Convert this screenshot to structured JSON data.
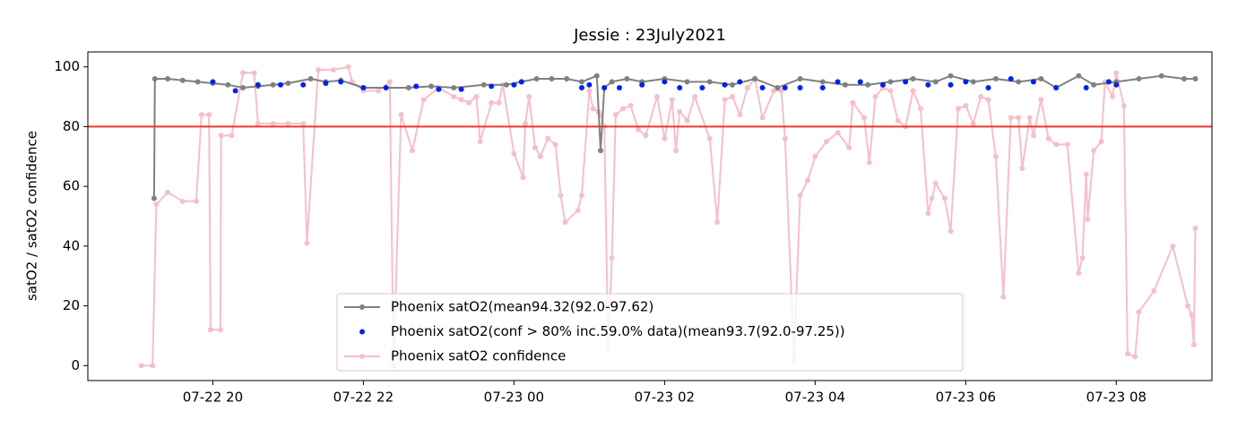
{
  "chart_data": {
    "type": "line",
    "title": "Jessie : 23July2021",
    "ylabel": "satO2 / satO2 confidence",
    "xlim": [
      18.34,
      33.27
    ],
    "xticks": [
      {
        "value": 20,
        "label": "07-22 20"
      },
      {
        "value": 22,
        "label": "07-22 22"
      },
      {
        "value": 24,
        "label": "07-23 00"
      },
      {
        "value": 26,
        "label": "07-23 02"
      },
      {
        "value": 28,
        "label": "07-23 04"
      },
      {
        "value": 30,
        "label": "07-23 06"
      },
      {
        "value": 32,
        "label": "07-23 08"
      }
    ],
    "ylim": [
      -5,
      105
    ],
    "yticks": [
      0,
      20,
      40,
      60,
      80,
      100
    ],
    "threshold": 80,
    "threshold_color": "#e8372c",
    "legend": "lower center",
    "series": [
      {
        "name": "Phoenix satO2(mean94.32(92.0-97.62)",
        "color": "#808080",
        "style": "line",
        "x": [
          19.22,
          19.23,
          19.4,
          19.6,
          19.8,
          20.0,
          20.2,
          20.4,
          20.6,
          20.8,
          21.0,
          21.3,
          21.5,
          21.7,
          22.0,
          22.3,
          22.6,
          22.9,
          23.2,
          23.6,
          23.9,
          24.1,
          24.3,
          24.5,
          24.7,
          24.9,
          25.1,
          25.15,
          25.2,
          25.3,
          25.5,
          25.7,
          26.0,
          26.3,
          26.6,
          26.9,
          27.2,
          27.5,
          27.8,
          28.1,
          28.4,
          28.7,
          29.0,
          29.3,
          29.6,
          29.8,
          30.1,
          30.4,
          30.7,
          31.0,
          31.2,
          31.5,
          31.7,
          32.0,
          32.3,
          32.6,
          32.9,
          33.05
        ],
        "values": [
          56,
          96,
          96,
          95.5,
          95,
          94.5,
          94,
          93,
          93.5,
          94,
          94.5,
          96,
          95,
          95.5,
          93,
          93,
          93,
          93.5,
          93,
          94,
          94,
          95,
          96,
          96,
          96,
          95,
          97,
          72,
          93,
          95,
          96,
          95,
          96,
          95,
          95,
          94,
          96,
          93,
          96,
          95,
          94,
          94,
          95,
          96,
          95,
          97,
          95,
          96,
          95,
          96,
          93,
          97,
          94,
          95,
          96,
          97,
          96,
          96
        ]
      },
      {
        "name": "Phoenix satO2(conf > 80% inc.59.0% data)(mean93.7(92.0-97.25))",
        "color": "#0022ee",
        "style": "scatter",
        "x": [
          20.0,
          20.3,
          20.6,
          20.9,
          21.2,
          21.5,
          21.7,
          22.0,
          22.3,
          22.7,
          23.0,
          23.3,
          23.7,
          24.0,
          24.1,
          24.9,
          25.0,
          25.2,
          25.4,
          25.7,
          26.0,
          26.2,
          26.5,
          26.8,
          27.0,
          27.3,
          27.6,
          27.8,
          28.1,
          28.3,
          28.6,
          28.9,
          29.2,
          29.5,
          29.8,
          30.0,
          30.3,
          30.6,
          30.9,
          31.2,
          31.6,
          31.9,
          32.0
        ],
        "values": [
          95,
          92,
          94,
          94,
          94,
          94.5,
          95,
          93,
          93,
          93.5,
          92.5,
          92.5,
          93.5,
          94,
          95,
          93,
          94,
          93,
          93,
          94,
          95,
          93,
          93,
          94,
          95,
          93,
          93,
          93,
          93,
          95,
          95,
          94,
          95,
          94,
          94,
          95,
          93,
          96,
          95,
          93,
          93,
          95,
          94
        ]
      },
      {
        "name": "Phoenix satO2 confidence",
        "color": "#f6bfca",
        "style": "line",
        "x": [
          19.05,
          19.2,
          19.25,
          19.4,
          19.6,
          19.78,
          19.85,
          19.95,
          19.97,
          20.1,
          20.11,
          20.25,
          20.4,
          20.55,
          20.6,
          20.8,
          21.0,
          21.2,
          21.25,
          21.4,
          21.6,
          21.8,
          21.85,
          22.0,
          22.2,
          22.35,
          22.4,
          22.5,
          22.65,
          22.8,
          23.0,
          23.2,
          23.3,
          23.4,
          23.5,
          23.55,
          23.7,
          23.8,
          23.85,
          24.0,
          24.12,
          24.15,
          24.2,
          24.28,
          24.35,
          24.45,
          24.55,
          24.62,
          24.68,
          24.85,
          24.9,
          25.0,
          25.05,
          25.12,
          25.15,
          25.2,
          25.25,
          25.3,
          25.35,
          25.45,
          25.55,
          25.65,
          25.75,
          25.9,
          26.0,
          26.1,
          26.15,
          26.2,
          26.3,
          26.4,
          26.6,
          26.7,
          26.8,
          26.9,
          27.0,
          27.1,
          27.2,
          27.3,
          27.45,
          27.55,
          27.6,
          27.72,
          27.8,
          27.9,
          28.0,
          28.15,
          28.3,
          28.45,
          28.5,
          28.65,
          28.72,
          28.8,
          28.9,
          29.0,
          29.1,
          29.2,
          29.3,
          29.4,
          29.5,
          29.55,
          29.6,
          29.72,
          29.8,
          29.9,
          30.0,
          30.1,
          30.2,
          30.3,
          30.4,
          30.5,
          30.6,
          30.7,
          30.75,
          30.85,
          30.9,
          31.0,
          31.1,
          31.2,
          31.35,
          31.5,
          31.55,
          31.6,
          31.62,
          31.7,
          31.8,
          31.85,
          31.95,
          32.0,
          32.1,
          32.15,
          32.25,
          32.3,
          32.5,
          32.75,
          32.95,
          33.0,
          33.03,
          33.05
        ],
        "values": [
          0,
          0,
          54,
          58,
          55,
          55,
          84,
          84,
          12,
          12,
          77,
          77,
          98,
          98,
          81,
          81,
          81,
          81,
          41,
          99,
          99,
          100,
          95,
          92,
          92,
          95,
          0,
          84,
          72,
          89,
          93,
          90,
          89,
          88,
          90,
          75,
          88,
          88,
          94,
          71,
          63,
          81,
          90,
          73,
          70,
          76,
          74,
          57,
          48,
          52,
          57,
          92,
          86,
          85,
          84,
          80,
          5,
          36,
          84,
          86,
          87,
          79,
          77,
          90,
          76,
          89,
          72,
          85,
          82,
          90,
          76,
          48,
          89,
          90,
          84,
          93,
          96,
          83,
          92,
          92,
          76,
          2,
          57,
          62,
          70,
          75,
          78,
          73,
          88,
          83,
          68,
          90,
          93,
          92,
          82,
          80,
          92,
          86,
          51,
          56,
          61,
          56,
          45,
          86,
          87,
          81,
          90,
          89,
          70,
          23,
          83,
          83,
          66,
          83,
          77,
          89,
          76,
          74,
          74,
          31,
          36,
          64,
          49,
          72,
          75,
          95,
          90,
          98,
          87,
          4,
          3,
          18,
          25,
          40,
          20,
          17,
          7,
          46
        ]
      }
    ]
  }
}
